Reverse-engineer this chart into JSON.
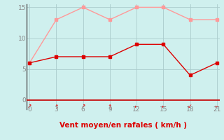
{
  "x": [
    0,
    3,
    6,
    9,
    12,
    15,
    18,
    21
  ],
  "wind_mean": [
    6,
    7,
    7,
    7,
    9,
    9,
    4,
    6
  ],
  "wind_gust": [
    6,
    13,
    15,
    13,
    15,
    15,
    13,
    13
  ],
  "wind_arrows": [
    "↗",
    "↑",
    "↗",
    "↑",
    "←",
    "←",
    "↙",
    "←"
  ],
  "xlabel": "Vent moyen/en rafales ( km/h )",
  "xlim": [
    0,
    21
  ],
  "ylim": [
    0,
    15
  ],
  "yticks": [
    0,
    5,
    10,
    15
  ],
  "xticks": [
    0,
    3,
    6,
    9,
    12,
    15,
    18,
    21
  ],
  "bg_color": "#cff0ee",
  "mean_color": "#dd0000",
  "gust_color": "#ff9999",
  "grid_color": "#aacccc",
  "arrow_color": "#dd0000",
  "axis_color": "#888888",
  "xaxis_line_color": "#cc0000",
  "text_color": "#dd0000"
}
